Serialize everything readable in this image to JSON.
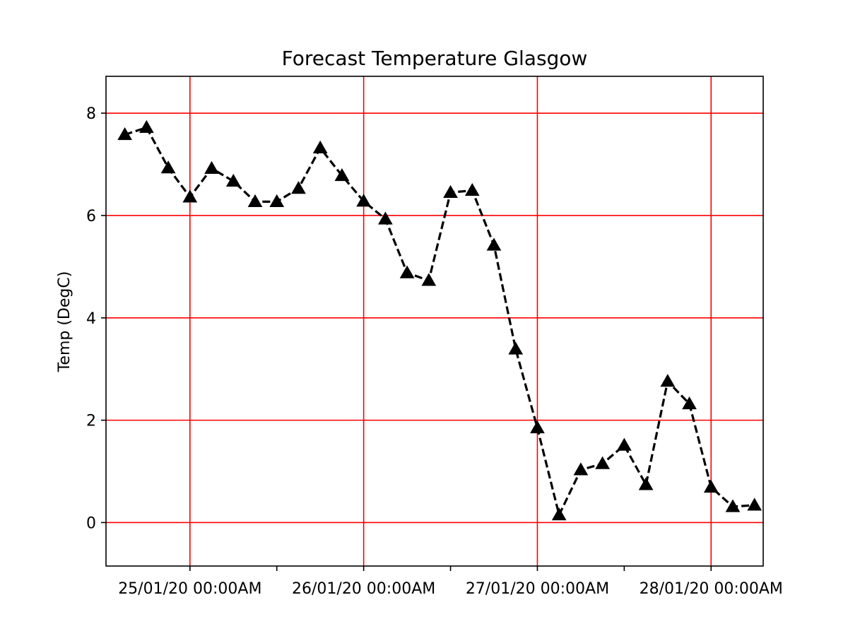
{
  "chart_data": {
    "type": "line",
    "title": "Forecast Temperature Glasgow",
    "xlabel": "",
    "ylabel": "Temp (DegC)",
    "ylim": [
      -0.85,
      8.72
    ],
    "yticks": [
      0,
      2,
      4,
      6,
      8
    ],
    "x_start": "24/01/20 15:00",
    "x_step_hours": 3,
    "grid": true,
    "grid_color": "#ff0000",
    "line_color": "#000000",
    "line_style": "dashed",
    "marker": "triangle-up",
    "xtick_labels": [
      {
        "hours": 9,
        "label": "25/01/20 00:00AM"
      },
      {
        "hours": 33,
        "label": "26/01/20 00:00AM"
      },
      {
        "hours": 57,
        "label": "27/01/20 00:00AM"
      },
      {
        "hours": 81,
        "label": "28/01/20 00:00AM"
      }
    ],
    "minor_tick_hours": [
      -3,
      21,
      45,
      69
    ],
    "series": [
      {
        "values": [
          7.58,
          7.72,
          6.93,
          6.36,
          6.92,
          6.67,
          6.27,
          6.27,
          6.53,
          7.32,
          6.78,
          6.28,
          5.93,
          4.88,
          4.73,
          6.45,
          6.49,
          5.42,
          3.39,
          1.85,
          0.15,
          1.03,
          1.15,
          1.51,
          0.74,
          2.76,
          2.32,
          0.69,
          0.31,
          0.34
        ]
      }
    ]
  }
}
